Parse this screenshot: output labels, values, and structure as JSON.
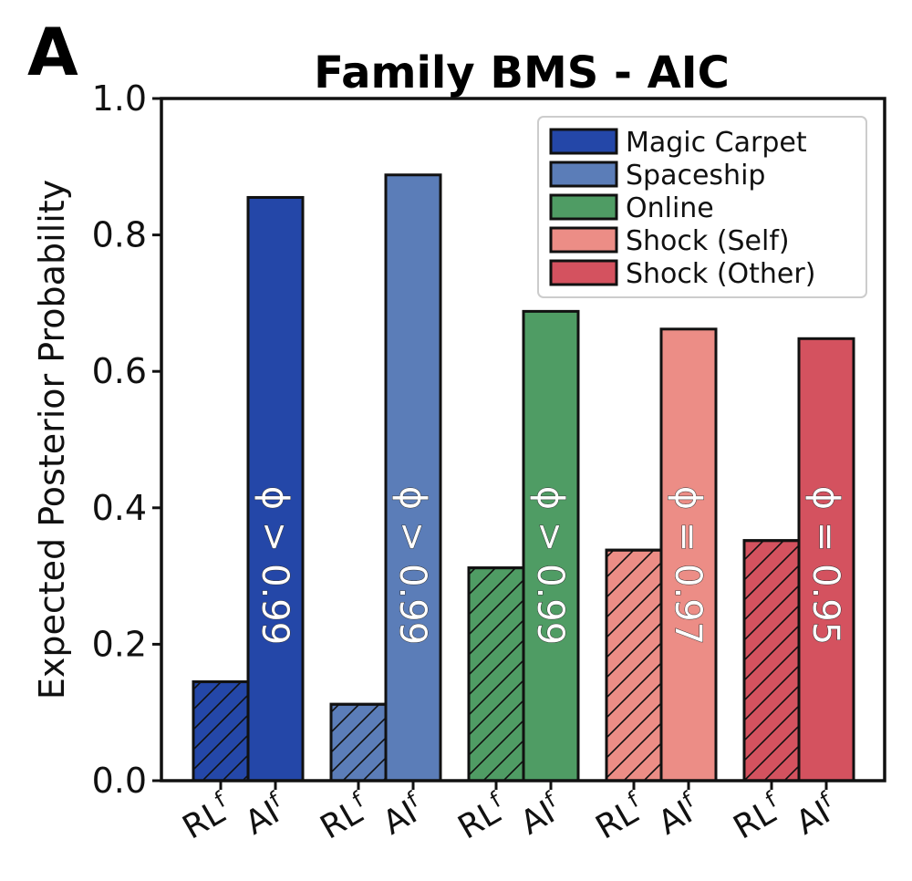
{
  "panel_label": "A",
  "chart_data": {
    "type": "bar",
    "title": "Family BMS - AIC",
    "xlabel": "",
    "ylabel": "Expected Posterior Probability",
    "ylim": [
      0,
      1.0
    ],
    "yticks": [
      "0.0",
      "0.2",
      "0.4",
      "0.6",
      "0.8",
      "1.0"
    ],
    "grid": false,
    "legend_position": "top-right",
    "groups": [
      {
        "name": "Magic Carpet",
        "color": "#2447a8",
        "values": {
          "RL": 0.145,
          "AI": 0.855
        },
        "annotation": "ϕ > 0.99"
      },
      {
        "name": "Spaceship",
        "color": "#5b7db8",
        "values": {
          "RL": 0.112,
          "AI": 0.888
        },
        "annotation": "ϕ > 0.99"
      },
      {
        "name": "Online",
        "color": "#4f9c64",
        "values": {
          "RL": 0.312,
          "AI": 0.688
        },
        "annotation": "ϕ > 0.99"
      },
      {
        "name": "Shock (Self)",
        "color": "#ec8d86",
        "values": {
          "RL": 0.338,
          "AI": 0.662
        },
        "annotation": "ϕ = 0.97"
      },
      {
        "name": "Shock (Other)",
        "color": "#d4525f",
        "values": {
          "RL": 0.352,
          "AI": 0.648
        },
        "annotation": "ϕ = 0.95"
      }
    ],
    "models": [
      {
        "key": "RL",
        "label": "RL",
        "subscript": "f",
        "hatched": true
      },
      {
        "key": "AI",
        "label": "AI",
        "subscript": "f",
        "hatched": false
      }
    ]
  }
}
